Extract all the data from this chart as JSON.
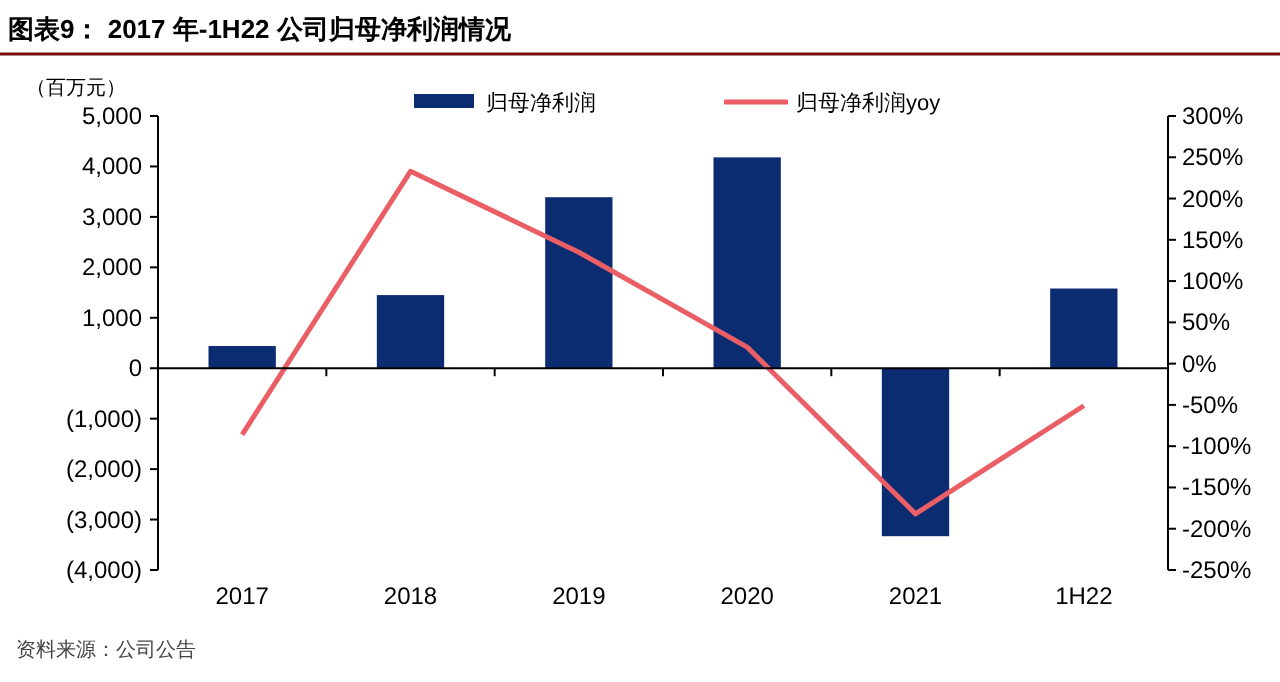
{
  "chart_data": {
    "type": "bar",
    "title": "图表9： 2017 年-1H22 公司归母净利润情况",
    "ylabel": "（百万元）",
    "categories": [
      "2017",
      "2018",
      "2019",
      "2020",
      "2021",
      "1H22"
    ],
    "series": [
      {
        "name": "归母净利润",
        "color": "#0c2c72",
        "values": [
          440,
          1450,
          3390,
          4180,
          -3330,
          1580
        ]
      },
      {
        "name": "归母净利润yoy",
        "type": "line",
        "axis": "y2",
        "color": "#ea5f66",
        "values": [
          -86,
          233,
          135,
          20,
          -182,
          -51
        ]
      }
    ],
    "ylim": [
      -4000,
      5000
    ],
    "yticks": [
      {
        "value": -4000,
        "label": "(4,000)"
      },
      {
        "value": -3000,
        "label": "(3,000)"
      },
      {
        "value": -2000,
        "label": "(2,000)"
      },
      {
        "value": -1000,
        "label": "(1,000)"
      },
      {
        "value": 0,
        "label": "0"
      },
      {
        "value": 1000,
        "label": "1,000"
      },
      {
        "value": 2000,
        "label": "2,000"
      },
      {
        "value": 3000,
        "label": "3,000"
      },
      {
        "value": 4000,
        "label": "4,000"
      },
      {
        "value": 5000,
        "label": "5,000"
      }
    ],
    "y2lim": [
      -250,
      300
    ],
    "y2ticks": [
      {
        "value": -250,
        "label": "-250%"
      },
      {
        "value": -200,
        "label": "-200%"
      },
      {
        "value": -150,
        "label": "-150%"
      },
      {
        "value": -100,
        "label": "-100%"
      },
      {
        "value": -50,
        "label": "-50%"
      },
      {
        "value": 0,
        "label": "0%"
      },
      {
        "value": 50,
        "label": "50%"
      },
      {
        "value": 100,
        "label": "100%"
      },
      {
        "value": 150,
        "label": "150%"
      },
      {
        "value": 200,
        "label": "200%"
      },
      {
        "value": 250,
        "label": "250%"
      },
      {
        "value": 300,
        "label": "300%"
      }
    ],
    "legend": "top",
    "annotations": [
      "资料来源：公司公告"
    ]
  }
}
